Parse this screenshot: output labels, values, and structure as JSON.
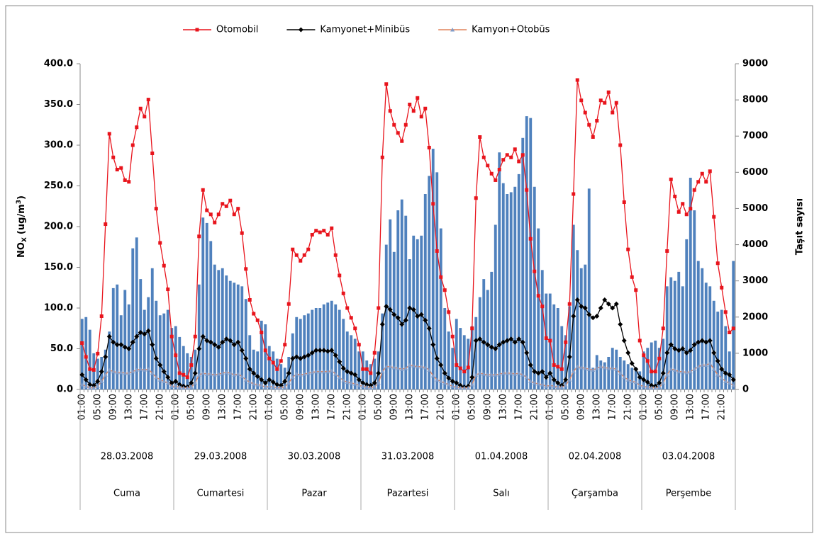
{
  "chart_data": {
    "type": "combo",
    "y_label": {
      "main": "NO",
      "sub": "X",
      "unit": "(ug/m",
      "sup": "3",
      "end": ")"
    },
    "y2_label": "Taşıt sayısı",
    "ylim": [
      0,
      400
    ],
    "yticks": [
      {
        "value": 0,
        "label": "0.0"
      },
      {
        "value": 50,
        "label": "50.0"
      },
      {
        "value": 100,
        "label": "100.0"
      },
      {
        "value": 150,
        "label": "150.0"
      },
      {
        "value": 200,
        "label": "200.0"
      },
      {
        "value": 250,
        "label": "250.0"
      },
      {
        "value": 300,
        "label": "300.0"
      },
      {
        "value": 350,
        "label": "350.0"
      },
      {
        "value": 400,
        "label": "400.0"
      }
    ],
    "y2lim": [
      0,
      9000
    ],
    "y2ticks": [
      0,
      1000,
      2000,
      3000,
      4000,
      5000,
      6000,
      7000,
      8000,
      9000
    ],
    "grid": false,
    "categories": [
      "01:00",
      null,
      null,
      null,
      "05:00",
      null,
      null,
      null,
      "09:00",
      null,
      null,
      null,
      "13:00",
      null,
      null,
      null,
      "17:00",
      null,
      null,
      null,
      "21:00",
      null,
      null,
      null,
      "01:00",
      null,
      null,
      null,
      "05:00",
      null,
      null,
      null,
      "09:00",
      null,
      null,
      null,
      "13:00",
      null,
      null,
      null,
      "17:00",
      null,
      null,
      null,
      "21:00",
      null,
      null,
      null,
      "01:00",
      null,
      null,
      null,
      "05:00",
      null,
      null,
      null,
      "09:00",
      null,
      null,
      null,
      "13:00",
      null,
      null,
      null,
      "17:00",
      null,
      null,
      null,
      "21:00",
      null,
      null,
      null,
      "01:00",
      null,
      null,
      null,
      "05:00",
      null,
      null,
      null,
      "09:00",
      null,
      null,
      null,
      "13:00",
      null,
      null,
      null,
      "17:00",
      null,
      null,
      null,
      "21:00",
      null,
      null,
      null,
      "01:00",
      null,
      null,
      null,
      "05:00",
      null,
      null,
      null,
      "09:00",
      null,
      null,
      null,
      "13:00",
      null,
      null,
      null,
      "17:00",
      null,
      null,
      null,
      "21:00",
      null,
      null,
      null,
      "01:00",
      null,
      null,
      null,
      "05:00",
      null,
      null,
      null,
      "09:00",
      null,
      null,
      null,
      "13:00",
      null,
      null,
      null,
      "17:00",
      null,
      null,
      null,
      "21:00",
      null,
      null,
      null,
      "01:00",
      null,
      null,
      null,
      "05:00",
      null,
      null,
      null,
      "09:00",
      null,
      null,
      null,
      "13:00",
      null,
      null,
      null,
      "17:00",
      null,
      null,
      null,
      "21:00",
      null,
      null,
      null
    ],
    "groups": [
      {
        "date": "28.03.2008",
        "day": "Cuma"
      },
      {
        "date": "29.03.2008",
        "day": "Cumartesi"
      },
      {
        "date": "30.03.2008",
        "day": "Pazar"
      },
      {
        "date": "31.03.2008",
        "day": "Pazartesi"
      },
      {
        "date": "01.04.2008",
        "day": "Salı"
      },
      {
        "date": "02.04.2008",
        "day": "Çarşamba"
      },
      {
        "date": "03.04.2008",
        "day": "Perşembe"
      }
    ],
    "series": [
      {
        "type": "bar",
        "axis": "y2",
        "color": "#4f81bd",
        "values": [
          1950,
          2000,
          1650,
          1000,
          850,
          900,
          1100,
          1600,
          2800,
          2900,
          2050,
          2750,
          2350,
          3900,
          4200,
          3050,
          2200,
          2550,
          3350,
          2450,
          2050,
          2100,
          2200,
          1700,
          1750,
          1450,
          1200,
          1000,
          900,
          1100,
          2900,
          4750,
          4600,
          4100,
          3450,
          3300,
          3350,
          3150,
          3000,
          2950,
          2900,
          2850,
          2500,
          1500,
          1100,
          1050,
          1900,
          1800,
          1200,
          1050,
          850,
          700,
          600,
          900,
          1550,
          2000,
          1950,
          2050,
          2100,
          2200,
          2250,
          2250,
          2350,
          2400,
          2450,
          2350,
          2200,
          1950,
          1600,
          1500,
          1400,
          1050,
          1050,
          800,
          700,
          850,
          1050,
          2100,
          4000,
          4700,
          3800,
          4950,
          5250,
          4800,
          3600,
          4250,
          4150,
          4250,
          5400,
          5900,
          6650,
          6000,
          4450,
          2250,
          1600,
          1150,
          1950,
          1700,
          1500,
          1400,
          1750,
          2000,
          2550,
          3050,
          2750,
          3250,
          4550,
          6550,
          5700,
          5400,
          5450,
          5600,
          5950,
          6950,
          7550,
          7500,
          5600,
          4450,
          3300,
          2650,
          2650,
          2350,
          2250,
          1750,
          1500,
          2300,
          4550,
          3850,
          3350,
          3450,
          5550,
          600,
          950,
          800,
          750,
          900,
          1150,
          1100,
          900,
          800,
          700,
          600,
          550,
          500,
          1050,
          1150,
          1300,
          1350,
          1150,
          1400,
          2850,
          3100,
          3000,
          3250,
          2850,
          4150,
          5850,
          4950,
          3550,
          3350,
          2950,
          2850,
          2450,
          2150,
          2200,
          1750,
          1050,
          3550
        ]
      },
      {
        "type": "line",
        "name": "Otomobil",
        "color": "#e8141c",
        "marker": "square",
        "marker_color": "#e8141c",
        "values": [
          57,
          40,
          25,
          24,
          44,
          90,
          203,
          314,
          285,
          270,
          272,
          257,
          255,
          300,
          322,
          345,
          335,
          356,
          290,
          222,
          180,
          152,
          123,
          65,
          42,
          20,
          18,
          15,
          30,
          65,
          188,
          245,
          220,
          215,
          205,
          215,
          228,
          225,
          232,
          215,
          222,
          192,
          148,
          110,
          93,
          85,
          70,
          48,
          38,
          33,
          25,
          35,
          55,
          105,
          172,
          165,
          158,
          165,
          172,
          190,
          195,
          193,
          195,
          190,
          198,
          165,
          140,
          118,
          100,
          88,
          75,
          55,
          25,
          25,
          20,
          45,
          100,
          285,
          375,
          342,
          325,
          315,
          305,
          325,
          350,
          342,
          358,
          335,
          345,
          297,
          228,
          170,
          138,
          122,
          95,
          65,
          30,
          26,
          22,
          27,
          75,
          235,
          310,
          285,
          275,
          265,
          257,
          270,
          282,
          288,
          285,
          295,
          280,
          288,
          245,
          185,
          145,
          115,
          102,
          63,
          60,
          30,
          28,
          25,
          58,
          105,
          240,
          380,
          355,
          340,
          325,
          310,
          330,
          355,
          352,
          365,
          340,
          352,
          300,
          230,
          172,
          138,
          122,
          60,
          42,
          35,
          22,
          22,
          38,
          75,
          170,
          258,
          237,
          218,
          228,
          215,
          222,
          245,
          255,
          265,
          255,
          268,
          212,
          155,
          125,
          95,
          70,
          75
        ]
      },
      {
        "type": "line",
        "name": "Kamyonet+Minibüs",
        "color": "#000000",
        "marker": "diamond",
        "marker_color": "#000000",
        "values": [
          18,
          12,
          6,
          5,
          10,
          22,
          40,
          65,
          58,
          55,
          55,
          52,
          50,
          58,
          65,
          70,
          68,
          72,
          55,
          38,
          30,
          22,
          15,
          8,
          10,
          6,
          4,
          3,
          8,
          20,
          50,
          65,
          60,
          58,
          55,
          52,
          58,
          62,
          60,
          55,
          58,
          48,
          38,
          25,
          20,
          16,
          12,
          8,
          12,
          9,
          6,
          5,
          10,
          20,
          38,
          40,
          38,
          40,
          42,
          45,
          48,
          48,
          48,
          47,
          48,
          42,
          34,
          26,
          22,
          20,
          18,
          12,
          8,
          6,
          5,
          8,
          20,
          80,
          102,
          98,
          92,
          88,
          80,
          85,
          100,
          98,
          90,
          92,
          85,
          75,
          55,
          38,
          30,
          20,
          14,
          10,
          8,
          5,
          3,
          4,
          15,
          60,
          62,
          58,
          55,
          52,
          50,
          55,
          58,
          60,
          62,
          58,
          62,
          58,
          45,
          30,
          22,
          20,
          22,
          15,
          20,
          12,
          8,
          5,
          12,
          40,
          90,
          110,
          102,
          100,
          92,
          88,
          90,
          100,
          110,
          105,
          100,
          105,
          80,
          60,
          45,
          32,
          25,
          15,
          12,
          9,
          5,
          4,
          8,
          20,
          45,
          55,
          50,
          48,
          50,
          45,
          48,
          55,
          58,
          60,
          58,
          60,
          45,
          35,
          25,
          20,
          18,
          12
        ]
      },
      {
        "type": "line",
        "name": "Kamyon+Otobüs",
        "color": "#e0845c",
        "marker": "triangle",
        "marker_color": "#7f9cc9",
        "values": [
          6,
          4,
          2,
          2,
          4,
          10,
          18,
          24,
          22,
          21,
          21,
          20,
          20,
          22,
          24,
          25,
          24,
          25,
          20,
          15,
          12,
          10,
          8,
          4,
          4,
          3,
          2,
          2,
          3,
          8,
          18,
          20,
          19,
          19,
          18,
          19,
          20,
          21,
          20,
          18,
          19,
          16,
          12,
          9,
          7,
          6,
          5,
          3,
          4,
          3,
          2,
          2,
          3,
          8,
          15,
          19,
          18,
          19,
          20,
          21,
          22,
          22,
          22,
          22,
          23,
          19,
          15,
          11,
          9,
          8,
          7,
          5,
          4,
          3,
          2,
          3,
          8,
          22,
          28,
          28,
          27,
          26,
          25,
          26,
          30,
          29,
          28,
          28,
          27,
          24,
          17,
          12,
          10,
          8,
          6,
          4,
          3,
          2,
          2,
          2,
          6,
          18,
          20,
          19,
          18,
          18,
          18,
          19,
          20,
          20,
          20,
          19,
          20,
          18,
          15,
          10,
          8,
          7,
          6,
          4,
          5,
          4,
          3,
          3,
          5,
          12,
          22,
          28,
          27,
          26,
          25,
          24,
          26,
          28,
          27,
          26,
          26,
          25,
          20,
          15,
          12,
          10,
          9,
          5,
          4,
          3,
          2,
          2,
          3,
          8,
          18,
          25,
          24,
          22,
          22,
          21,
          22,
          25,
          28,
          30,
          30,
          32,
          25,
          18,
          14,
          10,
          8,
          5
        ]
      }
    ]
  }
}
